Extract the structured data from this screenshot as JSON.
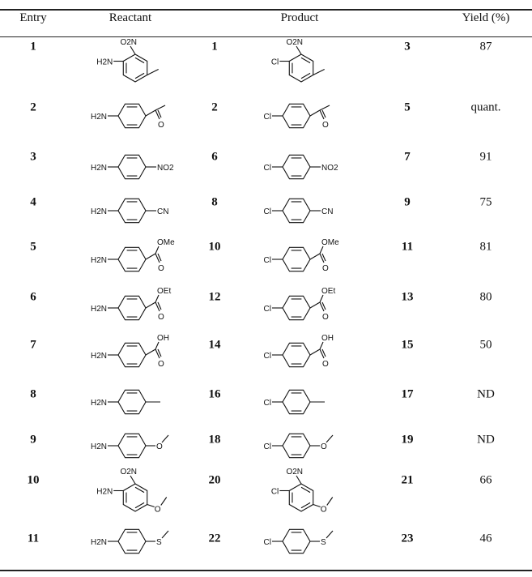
{
  "header": {
    "entry": "Entry",
    "reactant": "Reactant",
    "product": "Product",
    "yield": "Yield (%)"
  },
  "rows": [
    {
      "entry": "1",
      "reactant": {
        "left": "H2N",
        "ortho": "O2N",
        "para": "methyl",
        "labels": []
      },
      "reactant_no": "1",
      "product": {
        "left": "Cl",
        "ortho": "O2N",
        "para": "methyl",
        "labels": []
      },
      "product_no": "3",
      "yield": "87"
    },
    {
      "entry": "2",
      "reactant": {
        "left": "H2N",
        "para": "acetyl",
        "labels": [
          "O"
        ]
      },
      "reactant_no": "2",
      "product": {
        "left": "Cl",
        "para": "acetyl",
        "labels": [
          "O"
        ]
      },
      "product_no": "5",
      "yield": "quant."
    },
    {
      "entry": "3",
      "reactant": {
        "left": "H2N",
        "para": "nitro",
        "labels": [
          "NO2"
        ]
      },
      "reactant_no": "6",
      "product": {
        "left": "Cl",
        "para": "nitro",
        "labels": [
          "NO2"
        ]
      },
      "product_no": "7",
      "yield": "91"
    },
    {
      "entry": "4",
      "reactant": {
        "left": "H2N",
        "para": "cyano",
        "labels": [
          "CN"
        ]
      },
      "reactant_no": "8",
      "product": {
        "left": "Cl",
        "para": "cyano",
        "labels": [
          "CN"
        ]
      },
      "product_no": "9",
      "yield": "75"
    },
    {
      "entry": "5",
      "reactant": {
        "left": "H2N",
        "para": "ester",
        "labels": [
          "O",
          "OMe"
        ]
      },
      "reactant_no": "10",
      "product": {
        "left": "Cl",
        "para": "ester",
        "labels": [
          "O",
          "OMe"
        ]
      },
      "product_no": "11",
      "yield": "81"
    },
    {
      "entry": "6",
      "reactant": {
        "left": "H2N",
        "para": "ester",
        "labels": [
          "O",
          "OEt"
        ]
      },
      "reactant_no": "12",
      "product": {
        "left": "Cl",
        "para": "ester",
        "labels": [
          "O",
          "OEt"
        ]
      },
      "product_no": "13",
      "yield": "80"
    },
    {
      "entry": "7",
      "reactant": {
        "left": "H2N",
        "para": "ester",
        "labels": [
          "O",
          "OH"
        ]
      },
      "reactant_no": "14",
      "product": {
        "left": "Cl",
        "para": "ester",
        "labels": [
          "O",
          "OH"
        ]
      },
      "product_no": "15",
      "yield": "50"
    },
    {
      "entry": "8",
      "reactant": {
        "left": "H2N",
        "para": "methyl",
        "labels": []
      },
      "reactant_no": "16",
      "product": {
        "left": "Cl",
        "para": "methyl",
        "labels": []
      },
      "product_no": "17",
      "yield": "ND"
    },
    {
      "entry": "9",
      "reactant": {
        "left": "H2N",
        "para": "ether",
        "labels": [
          "O"
        ]
      },
      "reactant_no": "18",
      "product": {
        "left": "Cl",
        "para": "ether",
        "labels": [
          "O"
        ]
      },
      "product_no": "19",
      "yield": "ND"
    },
    {
      "entry": "10",
      "reactant": {
        "left": "H2N",
        "ortho": "O2N",
        "para": "ether",
        "labels": [
          "O"
        ]
      },
      "reactant_no": "20",
      "product": {
        "left": "Cl",
        "ortho": "O2N",
        "para": "ether",
        "labels": [
          "O"
        ]
      },
      "product_no": "21",
      "yield": "66"
    },
    {
      "entry": "11",
      "reactant": {
        "left": "H2N",
        "para": "ether",
        "labels": [
          "S"
        ]
      },
      "reactant_no": "22",
      "product": {
        "left": "Cl",
        "para": "ether",
        "labels": [
          "S"
        ]
      },
      "product_no": "23",
      "yield": "46"
    }
  ]
}
